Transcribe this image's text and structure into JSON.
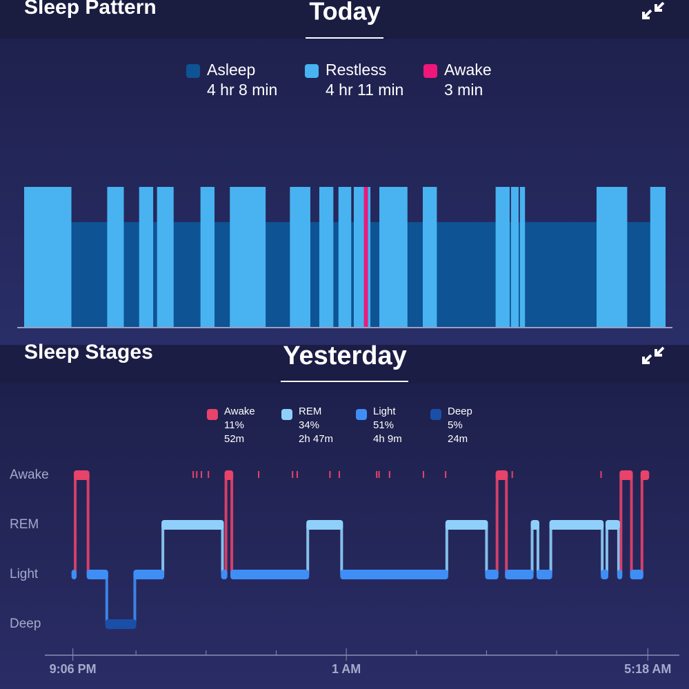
{
  "chart_data": [
    {
      "type": "timeline",
      "title": "Sleep Pattern",
      "period": "Today",
      "xlim": [
        0,
        502
      ],
      "series": [
        {
          "name": "Asleep",
          "duration": "4 hr 8 min",
          "color": "#0e5394",
          "level": "low",
          "segments": [
            [
              37,
              490
            ]
          ]
        },
        {
          "name": "Restless",
          "duration": "4 hr 11 min",
          "color": "#48b3f0",
          "level": "high",
          "segments": [
            [
              0,
              37
            ],
            [
              65,
              78
            ],
            [
              90,
              101
            ],
            [
              104,
              117
            ],
            [
              138,
              149
            ],
            [
              161,
              189
            ],
            [
              208,
              224
            ],
            [
              231,
              242
            ],
            [
              246,
              256
            ],
            [
              258,
              266
            ],
            [
              269,
              271
            ],
            [
              278,
              300
            ],
            [
              312,
              323
            ],
            [
              369,
              380
            ],
            [
              381,
              387
            ],
            [
              388,
              392
            ],
            [
              448,
              472
            ],
            [
              490,
              502
            ]
          ]
        },
        {
          "name": "Awake",
          "duration": "3 min",
          "color": "#f0177a",
          "level": "high",
          "segments": [
            [
              266,
              269
            ]
          ]
        }
      ]
    },
    {
      "type": "hypnogram",
      "title": "Sleep Stages",
      "period": "Yesterday",
      "categories": [
        "Awake",
        "REM",
        "Light",
        "Deep"
      ],
      "series": [
        {
          "name": "Awake",
          "percent": "11%",
          "duration": "52m",
          "color": "#e8436a"
        },
        {
          "name": "REM",
          "percent": "34%",
          "duration": "2h 47m",
          "color": "#8fd0fb"
        },
        {
          "name": "Light",
          "percent": "51%",
          "duration": "4h 9m",
          "color": "#3f8ef5"
        },
        {
          "name": "Deep",
          "percent": "5%",
          "duration": "24m",
          "color": "#1a4fa8"
        }
      ],
      "segments": [
        {
          "level": 2,
          "start": 0,
          "end": 2
        },
        {
          "level": 0,
          "start": 2,
          "end": 13
        },
        {
          "level": 2,
          "start": 13,
          "end": 29
        },
        {
          "level": 3,
          "start": 29,
          "end": 53
        },
        {
          "level": 2,
          "start": 53,
          "end": 77
        },
        {
          "level": 1,
          "start": 77,
          "end": 128
        },
        {
          "level": 2,
          "start": 128,
          "end": 131
        },
        {
          "level": 0,
          "start": 131,
          "end": 136
        },
        {
          "level": 2,
          "start": 136,
          "end": 201
        },
        {
          "level": 1,
          "start": 201,
          "end": 230
        },
        {
          "level": 2,
          "start": 230,
          "end": 320
        },
        {
          "level": 1,
          "start": 320,
          "end": 354
        },
        {
          "level": 2,
          "start": 354,
          "end": 363
        },
        {
          "level": 0,
          "start": 363,
          "end": 371
        },
        {
          "level": 2,
          "start": 371,
          "end": 393
        },
        {
          "level": 1,
          "start": 393,
          "end": 398
        },
        {
          "level": 2,
          "start": 398,
          "end": 409
        },
        {
          "level": 1,
          "start": 409,
          "end": 453
        },
        {
          "level": 2,
          "start": 453,
          "end": 457
        },
        {
          "level": 1,
          "start": 457,
          "end": 467
        },
        {
          "level": 2,
          "start": 467,
          "end": 469
        },
        {
          "level": 0,
          "start": 469,
          "end": 478
        },
        {
          "level": 2,
          "start": 478,
          "end": 487
        },
        {
          "level": 0,
          "start": 487,
          "end": 492
        }
      ],
      "awake_ticks": [
        103,
        106,
        110,
        116,
        159,
        188,
        192,
        220,
        228,
        260,
        262,
        271,
        300,
        319,
        376,
        452
      ],
      "xlim": [
        -24,
        519
      ],
      "xticks": [
        {
          "value": 0,
          "label": "9:06 PM"
        },
        {
          "value": 234,
          "label": "1 AM"
        },
        {
          "value": 492,
          "label": "5:18 AM"
        }
      ],
      "xminor_ticks": [
        54,
        114,
        174,
        294,
        354,
        414
      ]
    }
  ]
}
